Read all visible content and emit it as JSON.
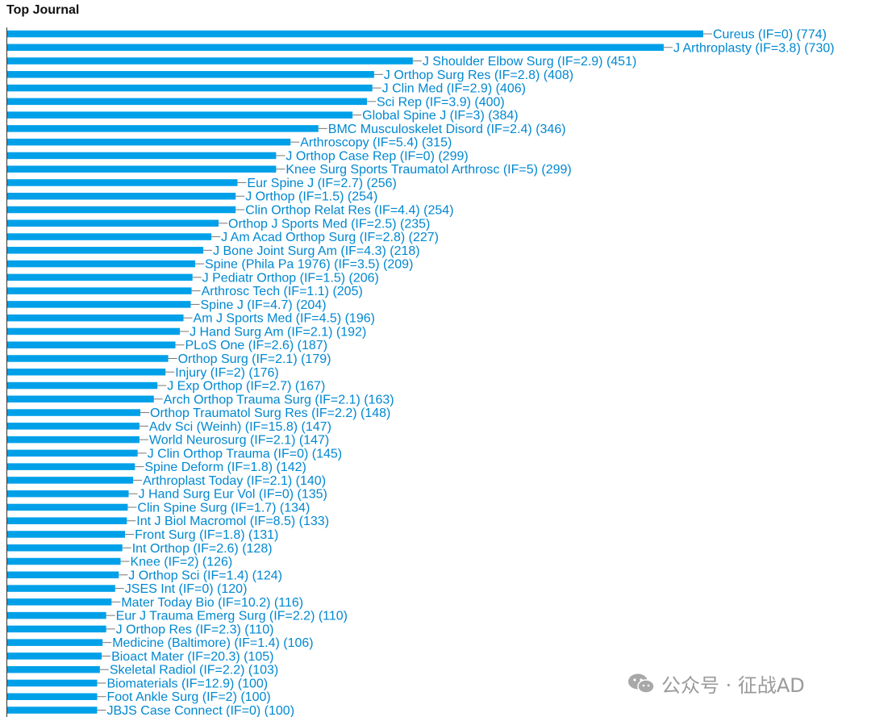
{
  "title": "Top Journal",
  "watermark": {
    "text": "公众号 · 征战AD",
    "icon": "wechat-icon"
  },
  "colors": {
    "bar": "#00A0E9",
    "label": "#0088D1",
    "axis": "#333333"
  },
  "chart_data": {
    "type": "bar",
    "orientation": "horizontal",
    "title": "Top Journal",
    "xlim": [
      0,
      774
    ],
    "grid": false,
    "categories": [
      "Cureus (IF=0) (774)",
      "J Arthroplasty (IF=3.8) (730)",
      "J Shoulder Elbow Surg (IF=2.9) (451)",
      "J Orthop Surg Res (IF=2.8) (408)",
      "J Clin Med (IF=2.9) (406)",
      "Sci Rep (IF=3.9) (400)",
      "Global Spine J (IF=3) (384)",
      "BMC Musculoskelet Disord (IF=2.4) (346)",
      "Arthroscopy (IF=5.4) (315)",
      "J Orthop Case Rep (IF=0) (299)",
      "Knee Surg Sports Traumatol Arthrosc (IF=5) (299)",
      "Eur Spine J (IF=2.7) (256)",
      "J Orthop (IF=1.5) (254)",
      "Clin Orthop Relat Res (IF=4.4) (254)",
      "Orthop J Sports Med (IF=2.5) (235)",
      "J Am Acad Orthop Surg (IF=2.8) (227)",
      "J Bone Joint Surg Am (IF=4.3) (218)",
      "Spine (Phila Pa 1976) (IF=3.5) (209)",
      "J Pediatr Orthop (IF=1.5) (206)",
      "Arthrosc Tech (IF=1.1) (205)",
      "Spine J (IF=4.7) (204)",
      "Am J Sports Med (IF=4.5) (196)",
      "J Hand Surg Am (IF=2.1) (192)",
      "PLoS One (IF=2.6) (187)",
      "Orthop Surg (IF=2.1) (179)",
      "Injury (IF=2) (176)",
      "J Exp Orthop (IF=2.7) (167)",
      "Arch Orthop Trauma Surg (IF=2.1) (163)",
      "Orthop Traumatol Surg Res (IF=2.2) (148)",
      "Adv Sci (Weinh) (IF=15.8) (147)",
      "World Neurosurg (IF=2.1) (147)",
      "J Clin Orthop Trauma (IF=0) (145)",
      "Spine Deform (IF=1.8) (142)",
      "Arthroplast Today (IF=2.1) (140)",
      "J Hand Surg Eur Vol (IF=0) (135)",
      "Clin Spine Surg (IF=1.7) (134)",
      "Int J Biol Macromol (IF=8.5) (133)",
      "Front Surg (IF=1.8) (131)",
      "Int Orthop (IF=2.6) (128)",
      "Knee (IF=2) (126)",
      "J Orthop Sci (IF=1.4) (124)",
      "JSES Int (IF=0) (120)",
      "Mater Today Bio (IF=10.2) (116)",
      "Eur J Trauma Emerg Surg (IF=2.2) (110)",
      "J Orthop Res (IF=2.3) (110)",
      "Medicine (Baltimore) (IF=1.4) (106)",
      "Bioact Mater (IF=20.3) (105)",
      "Skeletal Radiol (IF=2.2) (103)",
      "Biomaterials (IF=12.9) (100)",
      "Foot Ankle Surg (IF=2) (100)",
      "JBJS Case Connect (IF=0) (100)"
    ],
    "values": [
      774,
      730,
      451,
      408,
      406,
      400,
      384,
      346,
      315,
      299,
      299,
      256,
      254,
      254,
      235,
      227,
      218,
      209,
      206,
      205,
      204,
      196,
      192,
      187,
      179,
      176,
      167,
      163,
      148,
      147,
      147,
      145,
      142,
      140,
      135,
      134,
      133,
      131,
      128,
      126,
      124,
      120,
      116,
      110,
      110,
      106,
      105,
      103,
      100,
      100,
      100
    ]
  }
}
